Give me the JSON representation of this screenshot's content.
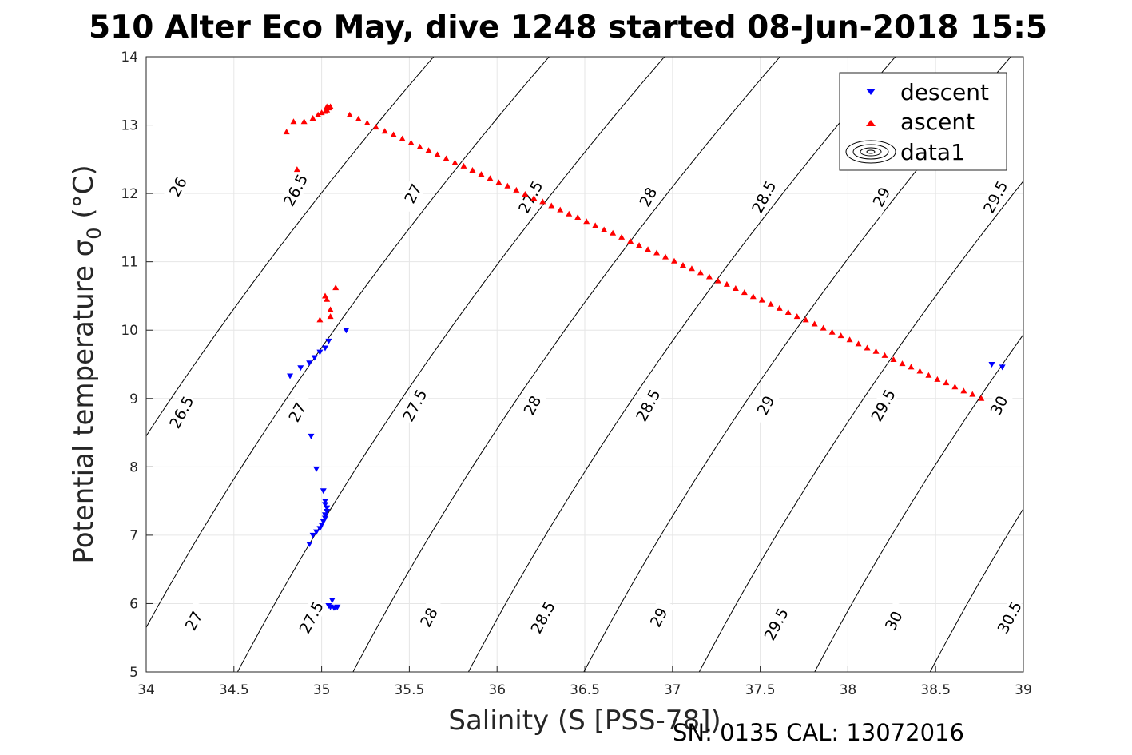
{
  "chart_data": {
    "type": "scatter",
    "title": "510 Alter Eco May, dive 1248 started 08-Jun-2018 15:5",
    "xlabel": "Salinity (S [PSS-78])",
    "ylabel": "Potential temperature σ",
    "ylabel_sub": "0",
    "ylabel_unit": " (°C)",
    "footer": "SN: 0135  CAL: 13072016",
    "xlim": [
      34,
      39
    ],
    "ylim": [
      5,
      14
    ],
    "x_ticks": [
      "34",
      "34.5",
      "35",
      "35.5",
      "36",
      "36.5",
      "37",
      "37.5",
      "38",
      "38.5",
      "39"
    ],
    "y_ticks": [
      "5",
      "6",
      "7",
      "8",
      "9",
      "10",
      "11",
      "12",
      "13",
      "14"
    ],
    "grid": true,
    "legend_position": "top-right",
    "legend": [
      "descent",
      "ascent",
      "data1"
    ],
    "colors": {
      "descent": "#0000ff",
      "ascent": "#ff0000",
      "contour": "#000000",
      "grid": "#e6e6e6"
    },
    "contours": {
      "levels": [
        25.5,
        26,
        26.5,
        27,
        27.5,
        28,
        28.5,
        29,
        29.5,
        30,
        30.5
      ],
      "labels": [
        {
          "text": "26",
          "s": 34.18,
          "t": 12.1
        },
        {
          "text": "26.5",
          "s": 34.85,
          "t": 12.05
        },
        {
          "text": "27",
          "s": 35.52,
          "t": 12.0
        },
        {
          "text": "27.5",
          "s": 36.19,
          "t": 11.95
        },
        {
          "text": "28",
          "s": 36.86,
          "t": 11.95
        },
        {
          "text": "28.5",
          "s": 37.52,
          "t": 11.95
        },
        {
          "text": "29",
          "s": 38.19,
          "t": 11.95
        },
        {
          "text": "29.5",
          "s": 38.84,
          "t": 11.95
        },
        {
          "text": "26.5",
          "s": 34.2,
          "t": 8.8
        },
        {
          "text": "27",
          "s": 34.86,
          "t": 8.8
        },
        {
          "text": "27.5",
          "s": 35.53,
          "t": 8.9
        },
        {
          "text": "28",
          "s": 36.2,
          "t": 8.9
        },
        {
          "text": "28.5",
          "s": 36.86,
          "t": 8.9
        },
        {
          "text": "29",
          "s": 37.53,
          "t": 8.9
        },
        {
          "text": "29.5",
          "s": 38.2,
          "t": 8.9
        },
        {
          "text": "30",
          "s": 38.86,
          "t": 8.9
        },
        {
          "text": "27",
          "s": 34.27,
          "t": 5.75
        },
        {
          "text": "27.5",
          "s": 34.94,
          "t": 5.8
        },
        {
          "text": "28",
          "s": 35.61,
          "t": 5.8
        },
        {
          "text": "28.5",
          "s": 36.26,
          "t": 5.8
        },
        {
          "text": "29",
          "s": 36.92,
          "t": 5.8
        },
        {
          "text": "29.5",
          "s": 37.59,
          "t": 5.7
        },
        {
          "text": "30",
          "s": 38.26,
          "t": 5.75
        },
        {
          "text": "30.5",
          "s": 38.92,
          "t": 5.8
        }
      ]
    },
    "series": [
      {
        "name": "descent",
        "marker": "triangle-down",
        "points": [
          [
            38.82,
            9.5
          ],
          [
            38.88,
            9.46
          ],
          [
            35.14,
            10.0
          ],
          [
            35.04,
            9.84
          ],
          [
            35.02,
            9.74
          ],
          [
            34.99,
            9.68
          ],
          [
            34.96,
            9.6
          ],
          [
            34.93,
            9.52
          ],
          [
            34.88,
            9.45
          ],
          [
            34.82,
            9.33
          ],
          [
            34.94,
            8.45
          ],
          [
            34.97,
            7.97
          ],
          [
            35.01,
            7.65
          ],
          [
            35.02,
            7.5
          ],
          [
            35.02,
            7.45
          ],
          [
            35.03,
            7.4
          ],
          [
            35.03,
            7.35
          ],
          [
            35.02,
            7.3
          ],
          [
            35.02,
            7.25
          ],
          [
            35.01,
            7.2
          ],
          [
            35.0,
            7.15
          ],
          [
            34.99,
            7.1
          ],
          [
            34.97,
            7.05
          ],
          [
            34.95,
            7.0
          ],
          [
            34.93,
            6.87
          ],
          [
            35.06,
            6.05
          ],
          [
            35.04,
            5.97
          ],
          [
            35.05,
            5.95
          ],
          [
            35.07,
            5.94
          ],
          [
            35.09,
            5.95
          ],
          [
            35.08,
            5.94
          ]
        ]
      },
      {
        "name": "ascent",
        "marker": "triangle-up",
        "points": [
          [
            34.8,
            12.9
          ],
          [
            34.84,
            13.05
          ],
          [
            34.9,
            13.05
          ],
          [
            34.95,
            13.1
          ],
          [
            34.98,
            13.15
          ],
          [
            35.0,
            13.18
          ],
          [
            35.02,
            13.2
          ],
          [
            35.03,
            13.22
          ],
          [
            35.04,
            13.25
          ],
          [
            35.05,
            13.27
          ],
          [
            35.03,
            13.27
          ],
          [
            34.86,
            12.35
          ],
          [
            35.08,
            10.62
          ],
          [
            35.02,
            10.5
          ],
          [
            35.03,
            10.45
          ],
          [
            35.05,
            10.3
          ],
          [
            35.05,
            10.2
          ],
          [
            34.99,
            10.15
          ],
          [
            35.16,
            13.15
          ],
          [
            35.21,
            13.09
          ],
          [
            35.26,
            13.03
          ],
          [
            35.31,
            12.97
          ],
          [
            35.36,
            12.91
          ],
          [
            35.41,
            12.86
          ],
          [
            35.46,
            12.8
          ],
          [
            35.51,
            12.74
          ],
          [
            35.56,
            12.68
          ],
          [
            35.61,
            12.63
          ],
          [
            35.66,
            12.57
          ],
          [
            35.71,
            12.51
          ],
          [
            35.76,
            12.45
          ],
          [
            35.81,
            12.4
          ],
          [
            35.86,
            12.34
          ],
          [
            35.91,
            12.28
          ],
          [
            35.96,
            12.22
          ],
          [
            36.01,
            12.16
          ],
          [
            36.06,
            12.11
          ],
          [
            36.11,
            12.05
          ],
          [
            36.16,
            11.99
          ],
          [
            36.21,
            11.93
          ],
          [
            36.26,
            11.88
          ],
          [
            36.31,
            11.82
          ],
          [
            36.36,
            11.76
          ],
          [
            36.41,
            11.7
          ],
          [
            36.46,
            11.65
          ],
          [
            36.51,
            11.59
          ],
          [
            36.56,
            11.53
          ],
          [
            36.61,
            11.47
          ],
          [
            36.66,
            11.42
          ],
          [
            36.71,
            11.36
          ],
          [
            36.76,
            11.3
          ],
          [
            36.81,
            11.24
          ],
          [
            36.86,
            11.18
          ],
          [
            36.91,
            11.13
          ],
          [
            36.96,
            11.07
          ],
          [
            37.01,
            11.01
          ],
          [
            37.06,
            10.95
          ],
          [
            37.11,
            10.9
          ],
          [
            37.16,
            10.84
          ],
          [
            37.21,
            10.78
          ],
          [
            37.26,
            10.72
          ],
          [
            37.31,
            10.67
          ],
          [
            37.36,
            10.61
          ],
          [
            37.41,
            10.55
          ],
          [
            37.46,
            10.49
          ],
          [
            37.51,
            10.44
          ],
          [
            37.56,
            10.38
          ],
          [
            37.61,
            10.32
          ],
          [
            37.66,
            10.26
          ],
          [
            37.71,
            10.2
          ],
          [
            37.76,
            10.15
          ],
          [
            37.81,
            10.09
          ],
          [
            37.86,
            10.03
          ],
          [
            37.91,
            9.97
          ],
          [
            37.96,
            9.92
          ],
          [
            38.01,
            9.86
          ],
          [
            38.06,
            9.8
          ],
          [
            38.11,
            9.74
          ],
          [
            38.16,
            9.69
          ],
          [
            38.21,
            9.63
          ],
          [
            38.26,
            9.57
          ],
          [
            38.31,
            9.51
          ],
          [
            38.36,
            9.46
          ],
          [
            38.41,
            9.4
          ],
          [
            38.46,
            9.34
          ],
          [
            38.51,
            9.28
          ],
          [
            38.56,
            9.23
          ],
          [
            38.61,
            9.17
          ],
          [
            38.66,
            9.11
          ],
          [
            38.71,
            9.06
          ],
          [
            38.76,
            9.0
          ]
        ]
      }
    ]
  }
}
